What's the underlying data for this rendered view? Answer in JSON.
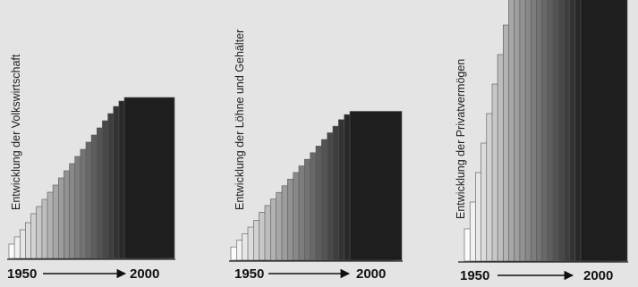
{
  "chart_data": [
    {
      "type": "bar",
      "title": "",
      "ylabel": "Entwicklung der Volkswirtschaft",
      "x_start_label": "1950",
      "x_end_label": "2000",
      "values": [
        0.08,
        0.12,
        0.16,
        0.2,
        0.25,
        0.29,
        0.33,
        0.37,
        0.41,
        0.45,
        0.49,
        0.53,
        0.57,
        0.61,
        0.65,
        0.69,
        0.73,
        0.77,
        0.81,
        0.85,
        0.88,
        0.9
      ]
    },
    {
      "type": "bar",
      "title": "",
      "ylabel": "Entwicklung der Löhne und Gehälter",
      "x_start_label": "1950",
      "x_end_label": "2000",
      "values": [
        0.08,
        0.12,
        0.16,
        0.2,
        0.24,
        0.29,
        0.33,
        0.37,
        0.41,
        0.45,
        0.49,
        0.53,
        0.57,
        0.61,
        0.65,
        0.69,
        0.73,
        0.77,
        0.81,
        0.85,
        0.88,
        0.9
      ]
    },
    {
      "type": "bar",
      "title": "",
      "ylabel": "Entwicklung der Privatvermögen",
      "x_start_label": "1950",
      "x_end_label": "2000",
      "values": [
        0.12,
        0.22,
        0.33,
        0.44,
        0.55,
        0.66,
        0.77,
        0.88,
        0.99,
        1.0,
        1.0,
        1.0,
        1.0,
        1.0,
        1.0,
        1.0,
        1.0,
        1.0,
        1.0,
        1.0,
        1.0,
        1.0
      ]
    }
  ]
}
